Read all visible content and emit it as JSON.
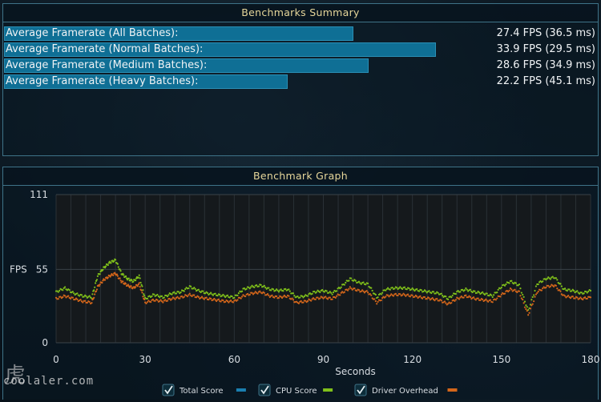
{
  "summary": {
    "title": "Benchmarks Summary",
    "rows": [
      {
        "label": "Average Framerate (All Batches):",
        "value": "27.4 FPS (36.5 ms)",
        "fps": 27.4
      },
      {
        "label": "Average Framerate (Normal Batches):",
        "value": "33.9 FPS (29.5 ms)",
        "fps": 33.9
      },
      {
        "label": "Average Framerate (Medium Batches):",
        "value": "28.6 FPS (34.9 ms)",
        "fps": 28.6
      },
      {
        "label": "Average Framerate (Heavy Batches):",
        "value": "22.2 FPS (45.1 ms)",
        "fps": 22.2
      }
    ]
  },
  "graph": {
    "title": "Benchmark Graph"
  },
  "chart_data": {
    "type": "scatter",
    "title": "Benchmark Graph",
    "xlabel": "Seconds",
    "ylabel": "FPS",
    "xlim": [
      0,
      180
    ],
    "ylim": [
      0,
      111
    ],
    "x_ticks": [
      0,
      30,
      60,
      90,
      120,
      150,
      180
    ],
    "y_ticks": [
      0,
      55,
      111
    ],
    "grid": true,
    "legend_position": "bottom-center",
    "series": [
      {
        "name": "Total Score",
        "color": "#1a7fb0",
        "checked": true,
        "x": [],
        "y": []
      },
      {
        "name": "CPU Score",
        "color": "#7fbf1a",
        "checked": true,
        "x": [
          0,
          3,
          6,
          9,
          12,
          14,
          16,
          18,
          20,
          22,
          24,
          26,
          28,
          30,
          33,
          36,
          39,
          42,
          45,
          48,
          51,
          54,
          57,
          60,
          63,
          66,
          69,
          72,
          75,
          78,
          81,
          84,
          87,
          90,
          93,
          96,
          99,
          102,
          105,
          108,
          111,
          114,
          117,
          120,
          123,
          126,
          129,
          132,
          135,
          138,
          141,
          144,
          147,
          150,
          153,
          156,
          159,
          162,
          165,
          168,
          171,
          174,
          177,
          180
        ],
        "y": [
          38,
          41,
          37,
          35,
          34,
          50,
          56,
          60,
          62,
          52,
          48,
          46,
          50,
          33,
          36,
          34,
          37,
          38,
          42,
          39,
          37,
          36,
          35,
          34,
          40,
          42,
          43,
          40,
          39,
          40,
          34,
          35,
          38,
          39,
          37,
          42,
          48,
          45,
          44,
          34,
          40,
          41,
          41,
          40,
          39,
          38,
          37,
          33,
          38,
          40,
          38,
          37,
          35,
          42,
          46,
          43,
          24,
          44,
          48,
          49,
          40,
          39,
          37,
          39
        ]
      },
      {
        "name": "Driver Overhead",
        "color": "#d4661a",
        "checked": true,
        "x": [
          0,
          3,
          6,
          9,
          12,
          14,
          16,
          18,
          20,
          22,
          24,
          26,
          28,
          30,
          33,
          36,
          39,
          42,
          45,
          48,
          51,
          54,
          57,
          60,
          63,
          66,
          69,
          72,
          75,
          78,
          81,
          84,
          87,
          90,
          93,
          96,
          99,
          102,
          105,
          108,
          111,
          114,
          117,
          120,
          123,
          126,
          129,
          132,
          135,
          138,
          141,
          144,
          147,
          150,
          153,
          156,
          159,
          162,
          165,
          168,
          171,
          174,
          177,
          180
        ],
        "y": [
          33,
          35,
          33,
          31,
          30,
          42,
          47,
          50,
          52,
          46,
          43,
          41,
          44,
          30,
          32,
          31,
          33,
          34,
          36,
          34,
          33,
          32,
          31,
          31,
          35,
          37,
          38,
          35,
          34,
          35,
          30,
          31,
          33,
          34,
          33,
          37,
          41,
          39,
          38,
          30,
          35,
          36,
          36,
          35,
          34,
          33,
          32,
          29,
          33,
          35,
          33,
          32,
          31,
          36,
          40,
          38,
          21,
          38,
          42,
          43,
          35,
          34,
          33,
          34
        ]
      }
    ]
  },
  "legend": {
    "items": [
      {
        "label": "Total Score",
        "color": "#1a7fb0"
      },
      {
        "label": "CPU Score",
        "color": "#7fbf1a"
      },
      {
        "label": "Driver Overhead",
        "color": "#d4661a"
      }
    ]
  },
  "watermark": {
    "text": "coolaler.com"
  }
}
